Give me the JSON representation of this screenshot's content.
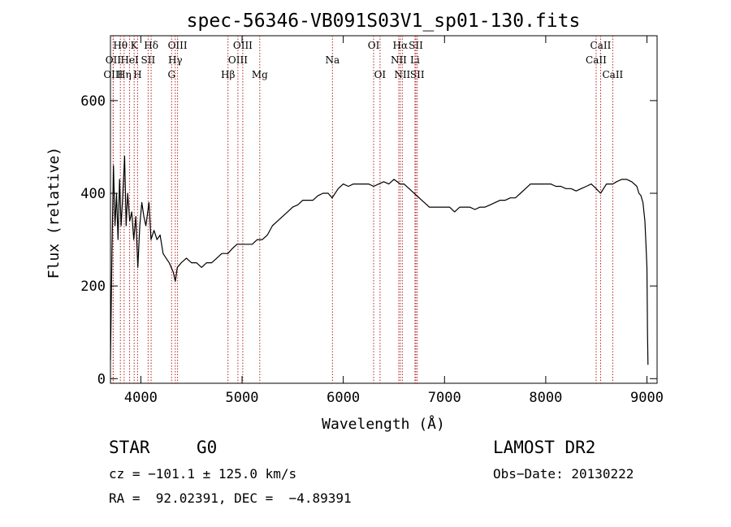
{
  "chart_data": {
    "type": "line",
    "title": "spec-56346-VB091S03V1_sp01-130.fits",
    "xlabel": "Wavelength (Å)",
    "ylabel": "Flux (relative)",
    "xlim": [
      3700,
      9100
    ],
    "ylim": [
      -10,
      740
    ],
    "xticks": [
      4000,
      5000,
      6000,
      7000,
      8000,
      9000
    ],
    "yticks": [
      0,
      200,
      400,
      600
    ],
    "grid": false,
    "line_color": "#000000",
    "marker_color": "#b22222",
    "series": [
      {
        "values": [
          [
            3700,
            40
          ],
          [
            3715,
            280
          ],
          [
            3730,
            460
          ],
          [
            3745,
            330
          ],
          [
            3760,
            400
          ],
          [
            3775,
            300
          ],
          [
            3790,
            430
          ],
          [
            3805,
            330
          ],
          [
            3820,
            390
          ],
          [
            3840,
            480
          ],
          [
            3855,
            330
          ],
          [
            3870,
            400
          ],
          [
            3890,
            340
          ],
          [
            3910,
            360
          ],
          [
            3930,
            300
          ],
          [
            3950,
            350
          ],
          [
            3970,
            240
          ],
          [
            3990,
            330
          ],
          [
            4010,
            380
          ],
          [
            4030,
            350
          ],
          [
            4050,
            330
          ],
          [
            4080,
            380
          ],
          [
            4100,
            300
          ],
          [
            4130,
            320
          ],
          [
            4160,
            300
          ],
          [
            4190,
            310
          ],
          [
            4220,
            270
          ],
          [
            4250,
            260
          ],
          [
            4280,
            250
          ],
          [
            4300,
            240
          ],
          [
            4320,
            230
          ],
          [
            4340,
            210
          ],
          [
            4360,
            240
          ],
          [
            4400,
            250
          ],
          [
            4450,
            260
          ],
          [
            4500,
            250
          ],
          [
            4550,
            250
          ],
          [
            4600,
            240
          ],
          [
            4650,
            250
          ],
          [
            4700,
            250
          ],
          [
            4750,
            260
          ],
          [
            4800,
            270
          ],
          [
            4860,
            270
          ],
          [
            4900,
            280
          ],
          [
            4950,
            290
          ],
          [
            5000,
            290
          ],
          [
            5050,
            290
          ],
          [
            5100,
            290
          ],
          [
            5150,
            300
          ],
          [
            5200,
            300
          ],
          [
            5250,
            310
          ],
          [
            5300,
            330
          ],
          [
            5350,
            340
          ],
          [
            5400,
            350
          ],
          [
            5450,
            360
          ],
          [
            5500,
            370
          ],
          [
            5550,
            375
          ],
          [
            5600,
            385
          ],
          [
            5650,
            385
          ],
          [
            5700,
            385
          ],
          [
            5750,
            395
          ],
          [
            5800,
            400
          ],
          [
            5850,
            400
          ],
          [
            5890,
            390
          ],
          [
            5950,
            410
          ],
          [
            6000,
            420
          ],
          [
            6050,
            415
          ],
          [
            6100,
            420
          ],
          [
            6150,
            420
          ],
          [
            6200,
            420
          ],
          [
            6250,
            420
          ],
          [
            6300,
            415
          ],
          [
            6350,
            420
          ],
          [
            6400,
            425
          ],
          [
            6450,
            420
          ],
          [
            6500,
            430
          ],
          [
            6563,
            420
          ],
          [
            6600,
            420
          ],
          [
            6650,
            410
          ],
          [
            6700,
            400
          ],
          [
            6750,
            390
          ],
          [
            6800,
            380
          ],
          [
            6850,
            370
          ],
          [
            6900,
            370
          ],
          [
            6950,
            370
          ],
          [
            7000,
            370
          ],
          [
            7050,
            370
          ],
          [
            7100,
            360
          ],
          [
            7150,
            370
          ],
          [
            7200,
            370
          ],
          [
            7250,
            370
          ],
          [
            7300,
            365
          ],
          [
            7350,
            370
          ],
          [
            7400,
            370
          ],
          [
            7450,
            375
          ],
          [
            7500,
            380
          ],
          [
            7550,
            385
          ],
          [
            7600,
            385
          ],
          [
            7650,
            390
          ],
          [
            7700,
            390
          ],
          [
            7750,
            400
          ],
          [
            7800,
            410
          ],
          [
            7850,
            420
          ],
          [
            7900,
            420
          ],
          [
            7950,
            420
          ],
          [
            8000,
            420
          ],
          [
            8050,
            420
          ],
          [
            8100,
            415
          ],
          [
            8150,
            415
          ],
          [
            8200,
            410
          ],
          [
            8250,
            410
          ],
          [
            8300,
            405
          ],
          [
            8350,
            410
          ],
          [
            8400,
            415
          ],
          [
            8450,
            420
          ],
          [
            8498,
            410
          ],
          [
            8542,
            400
          ],
          [
            8600,
            420
          ],
          [
            8662,
            420
          ],
          [
            8700,
            425
          ],
          [
            8750,
            430
          ],
          [
            8800,
            430
          ],
          [
            8850,
            425
          ],
          [
            8900,
            415
          ],
          [
            8920,
            400
          ],
          [
            8940,
            395
          ],
          [
            8960,
            380
          ],
          [
            8980,
            340
          ],
          [
            8990,
            290
          ],
          [
            9000,
            240
          ],
          [
            9005,
            100
          ],
          [
            9010,
            30
          ]
        ]
      }
    ],
    "lines": [
      {
        "label": "OII",
        "x": 3727,
        "row": 1
      },
      {
        "label": "OIII",
        "x": 3727,
        "row": 2
      },
      {
        "label": "Hθ",
        "x": 3798,
        "row": 0
      },
      {
        "label": "Hη",
        "x": 3835,
        "row": 2
      },
      {
        "label": "HeI",
        "x": 3889,
        "row": 1
      },
      {
        "label": "K",
        "x": 3934,
        "row": 0
      },
      {
        "label": "H",
        "x": 3968,
        "row": 2
      },
      {
        "label": "SII",
        "x": 4072,
        "row": 1
      },
      {
        "label": "Hδ",
        "x": 4102,
        "row": 0
      },
      {
        "label": "G",
        "x": 4304,
        "row": 2
      },
      {
        "label": "Hγ",
        "x": 4340,
        "row": 1
      },
      {
        "label": "OIII",
        "x": 4363,
        "row": 0
      },
      {
        "label": "Hβ",
        "x": 4861,
        "row": 2
      },
      {
        "label": "OIII",
        "x": 4959,
        "row": 1
      },
      {
        "label": "OIII",
        "x": 5007,
        "row": 0
      },
      {
        "label": "Mg",
        "x": 5175,
        "row": 2
      },
      {
        "label": "Na",
        "x": 5893,
        "row": 1
      },
      {
        "label": "OI",
        "x": 6300,
        "row": 0
      },
      {
        "label": "OI",
        "x": 6363,
        "row": 2
      },
      {
        "label": "NII",
        "x": 6548,
        "row": 1
      },
      {
        "label": "Hα",
        "x": 6563,
        "row": 0
      },
      {
        "label": "NII",
        "x": 6583,
        "row": 2
      },
      {
        "label": "Li",
        "x": 6708,
        "row": 1
      },
      {
        "label": "SII",
        "x": 6717,
        "row": 0
      },
      {
        "label": "SII",
        "x": 6731,
        "row": 2
      },
      {
        "label": "CaII",
        "x": 8498,
        "row": 1
      },
      {
        "label": "CaII",
        "x": 8542,
        "row": 0
      },
      {
        "label": "CaII",
        "x": 8662,
        "row": 2
      }
    ]
  },
  "info": {
    "class_label": "STAR",
    "subclass": "G0",
    "cz_text": "cz = −101.1 ± 125.0 km/s",
    "radec_text": "RA =  92.02391, DEC =  −4.89391",
    "survey": "LAMOST DR2",
    "obs_date": "Obs−Date: 20130222"
  }
}
